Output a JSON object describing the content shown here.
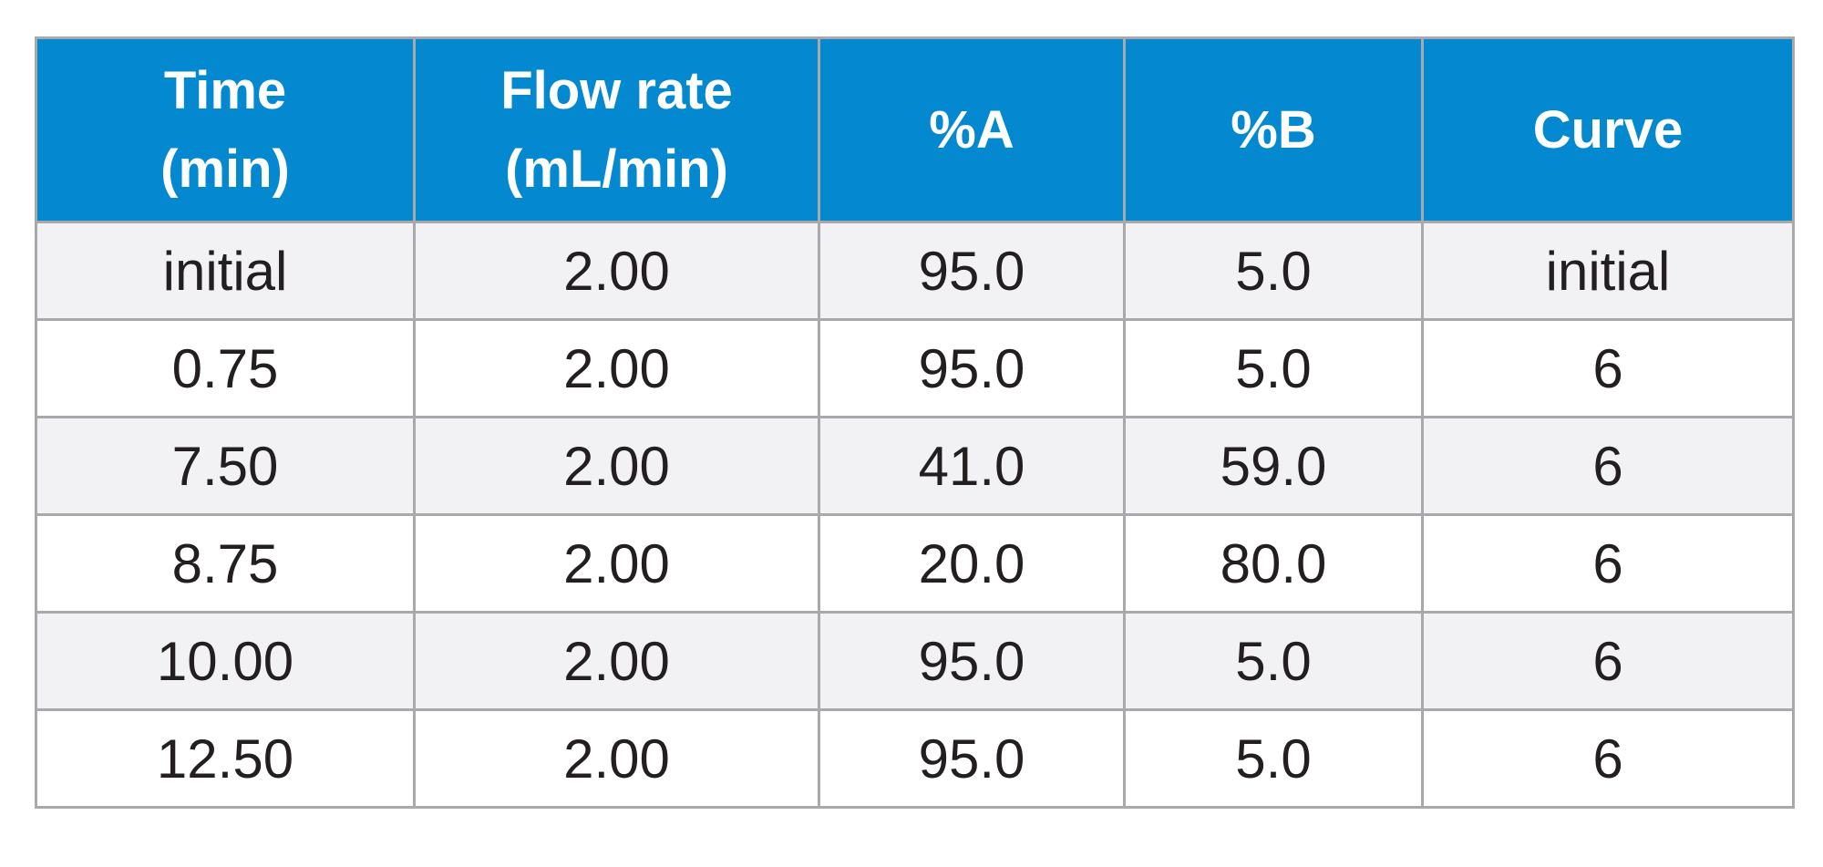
{
  "table": {
    "headers": [
      [
        "Time",
        "(min)"
      ],
      [
        "Flow rate",
        "(mL/min)"
      ],
      [
        "%A"
      ],
      [
        "%B"
      ],
      [
        "Curve"
      ]
    ],
    "rows": [
      [
        "initial",
        "2.00",
        "95.0",
        "5.0",
        "initial"
      ],
      [
        "0.75",
        "2.00",
        "95.0",
        "5.0",
        "6"
      ],
      [
        "7.50",
        "2.00",
        "41.0",
        "59.0",
        "6"
      ],
      [
        "8.75",
        "2.00",
        "20.0",
        "80.0",
        "6"
      ],
      [
        "10.00",
        "2.00",
        "95.0",
        "5.0",
        "6"
      ],
      [
        "12.50",
        "2.00",
        "95.0",
        "5.0",
        "6"
      ]
    ]
  },
  "colors": {
    "header_bg": "#0489d1",
    "header_text": "#ffffff",
    "row_alt_bg": "#f2f2f4",
    "row_bg": "#ffffff",
    "grid": "#a9a9ab",
    "text": "#231f20"
  }
}
